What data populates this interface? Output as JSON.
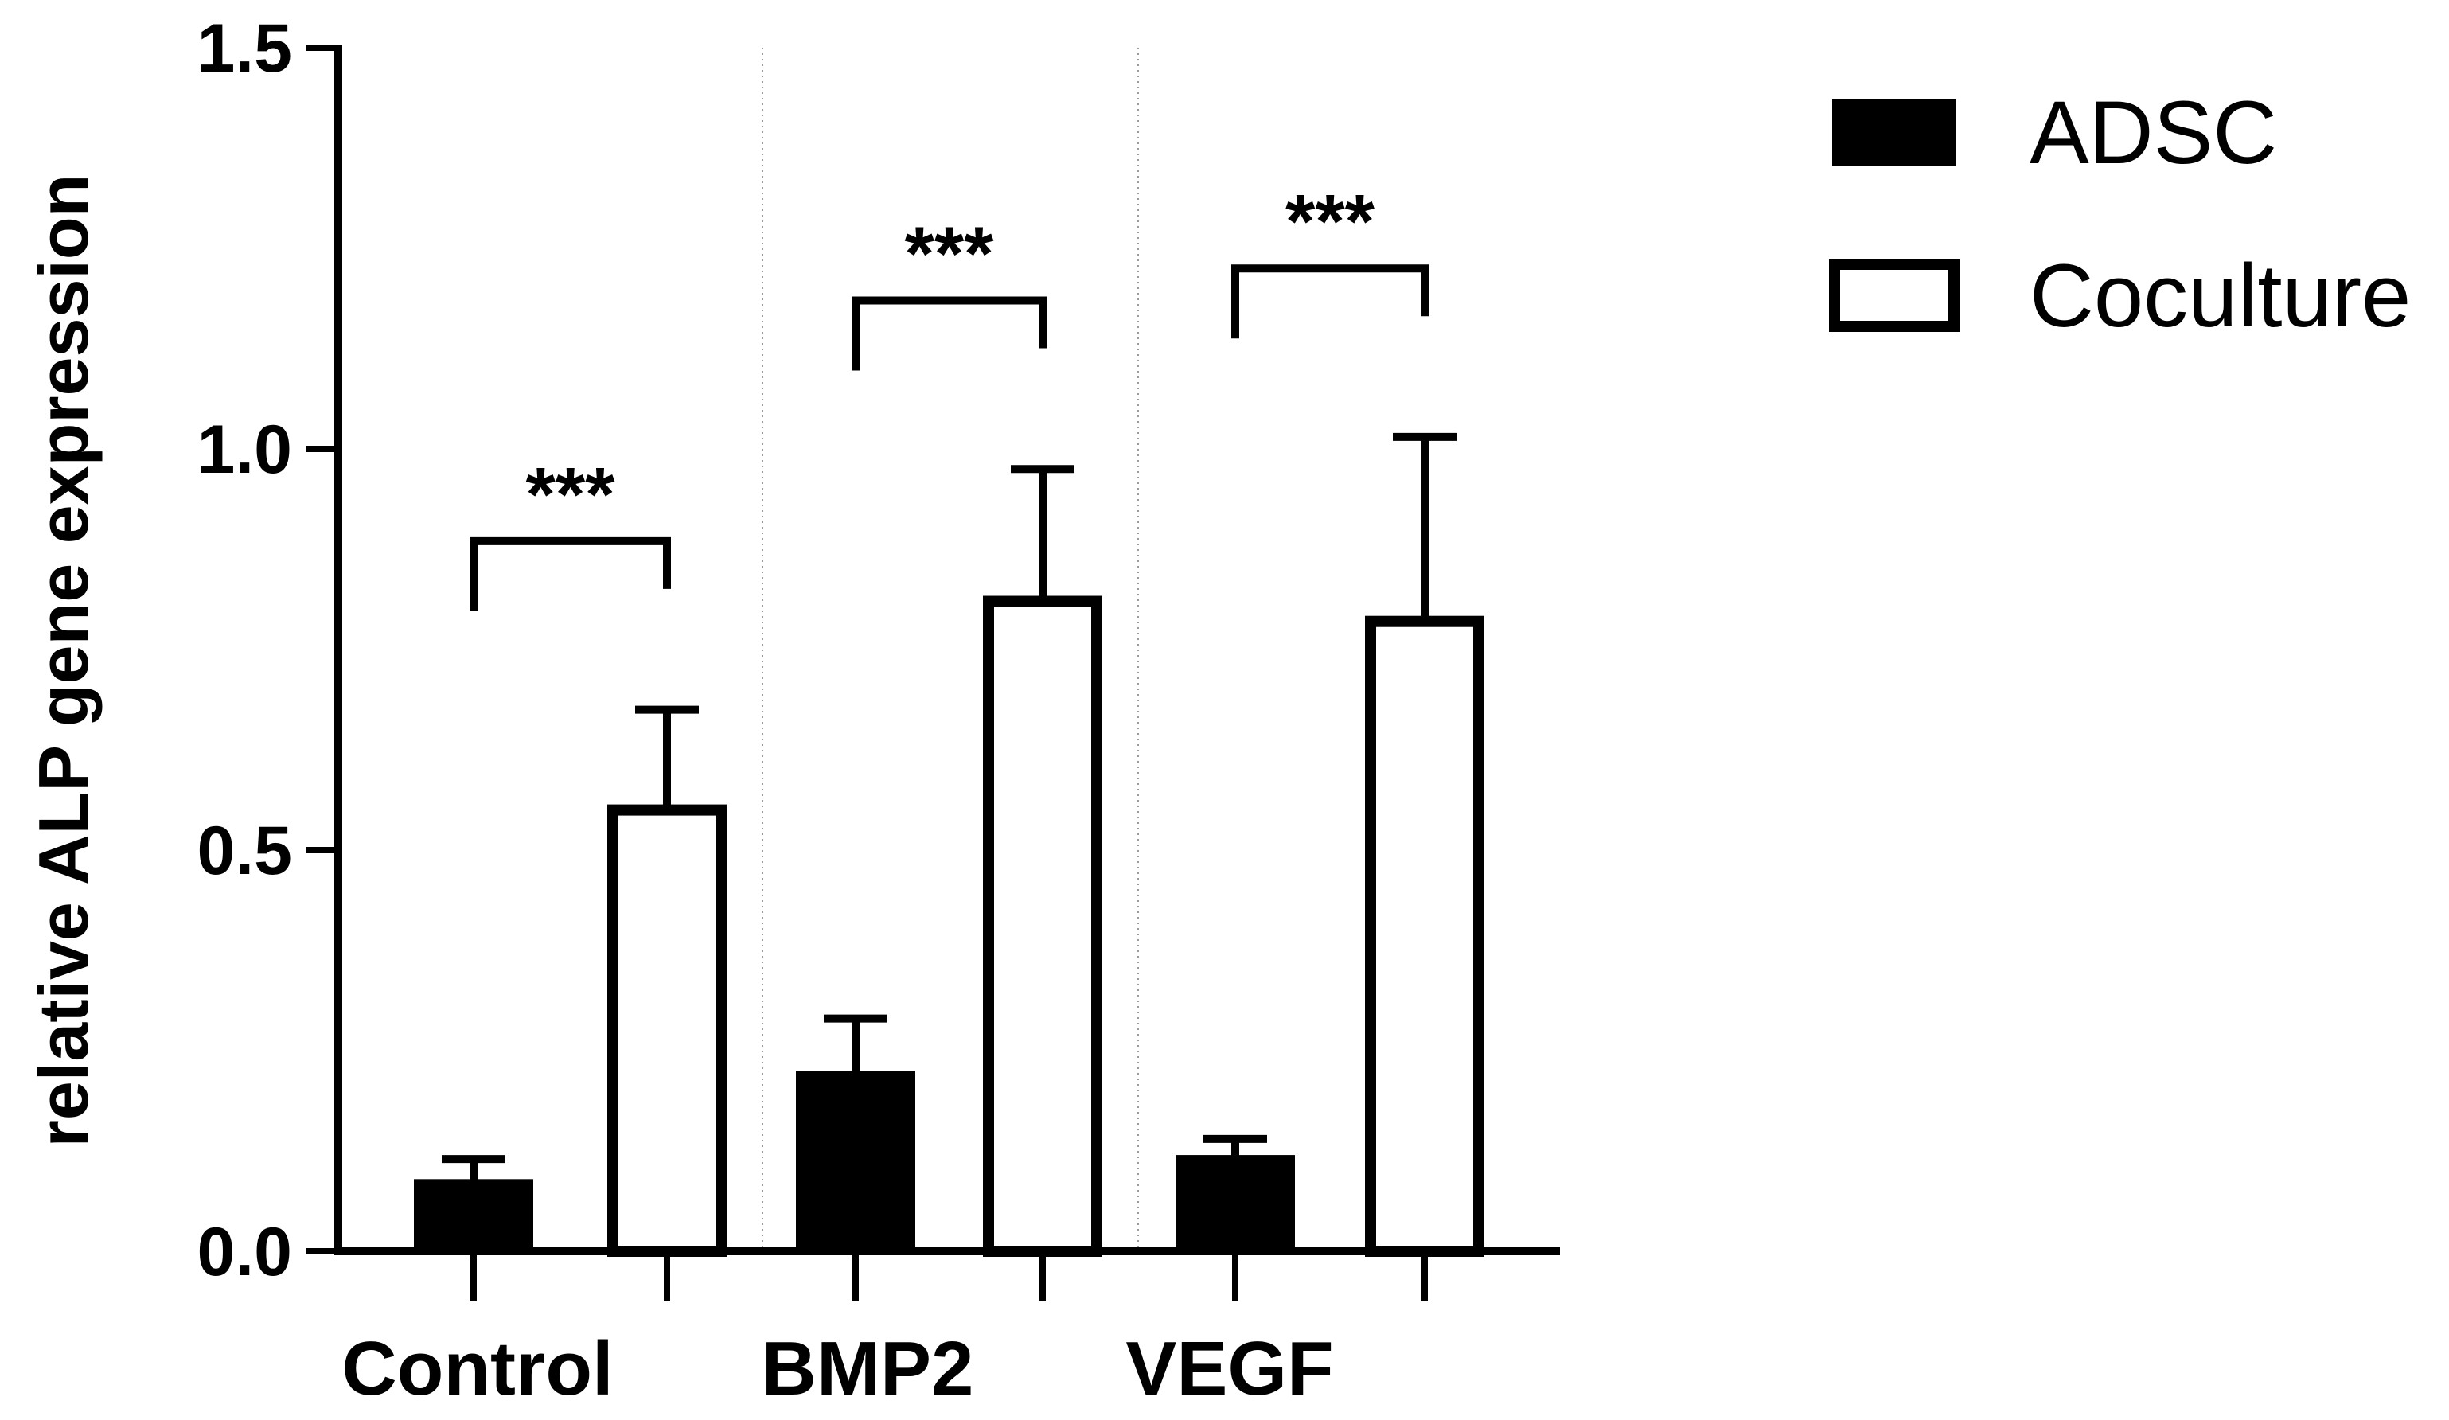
{
  "chart_data": {
    "type": "bar",
    "ylabel": "relative ALP gene expression",
    "xlabel": "",
    "categories": [
      "Control",
      "BMP2",
      "VEGF"
    ],
    "ylim": [
      0,
      1.5
    ],
    "yticks": [
      "0.0",
      "0.5",
      "1.0",
      "1.5"
    ],
    "grid": false,
    "legend_position": "top-right",
    "series": [
      {
        "name": "ADSC",
        "style": "filled",
        "values": [
          0.085,
          0.22,
          0.115
        ],
        "errors": [
          0.03,
          0.07,
          0.025
        ]
      },
      {
        "name": "Coculture",
        "style": "open",
        "values": [
          0.55,
          0.81,
          0.785
        ],
        "errors": [
          0.125,
          0.165,
          0.23
        ]
      }
    ],
    "annotations": [
      {
        "category": "Control",
        "text": "***"
      },
      {
        "category": "BMP2",
        "text": "***"
      },
      {
        "category": "VEGF",
        "text": "***"
      }
    ]
  }
}
